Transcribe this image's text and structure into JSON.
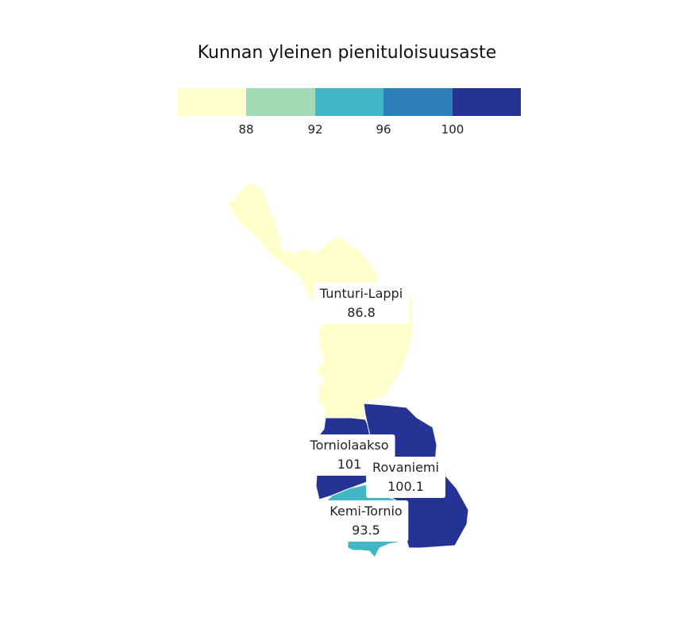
{
  "title": "Kunnan yleinen pienituloisuusaste",
  "legend": {
    "colors": [
      "#ffffcc",
      "#a1dab4",
      "#41b6c4",
      "#2c7fb8",
      "#253494"
    ],
    "ticks": [
      "88",
      "92",
      "96",
      "100"
    ]
  },
  "regions": [
    {
      "name": "Tunturi-Lappi",
      "value": "86.8",
      "color": "#ffffcc"
    },
    {
      "name": "Torniolaakso",
      "value": "101",
      "color": "#253494"
    },
    {
      "name": "Rovaniemi",
      "value": "100.1",
      "color": "#253494"
    },
    {
      "name": "Kemi-Tornio",
      "value": "93.5",
      "color": "#41b6c4"
    }
  ]
}
